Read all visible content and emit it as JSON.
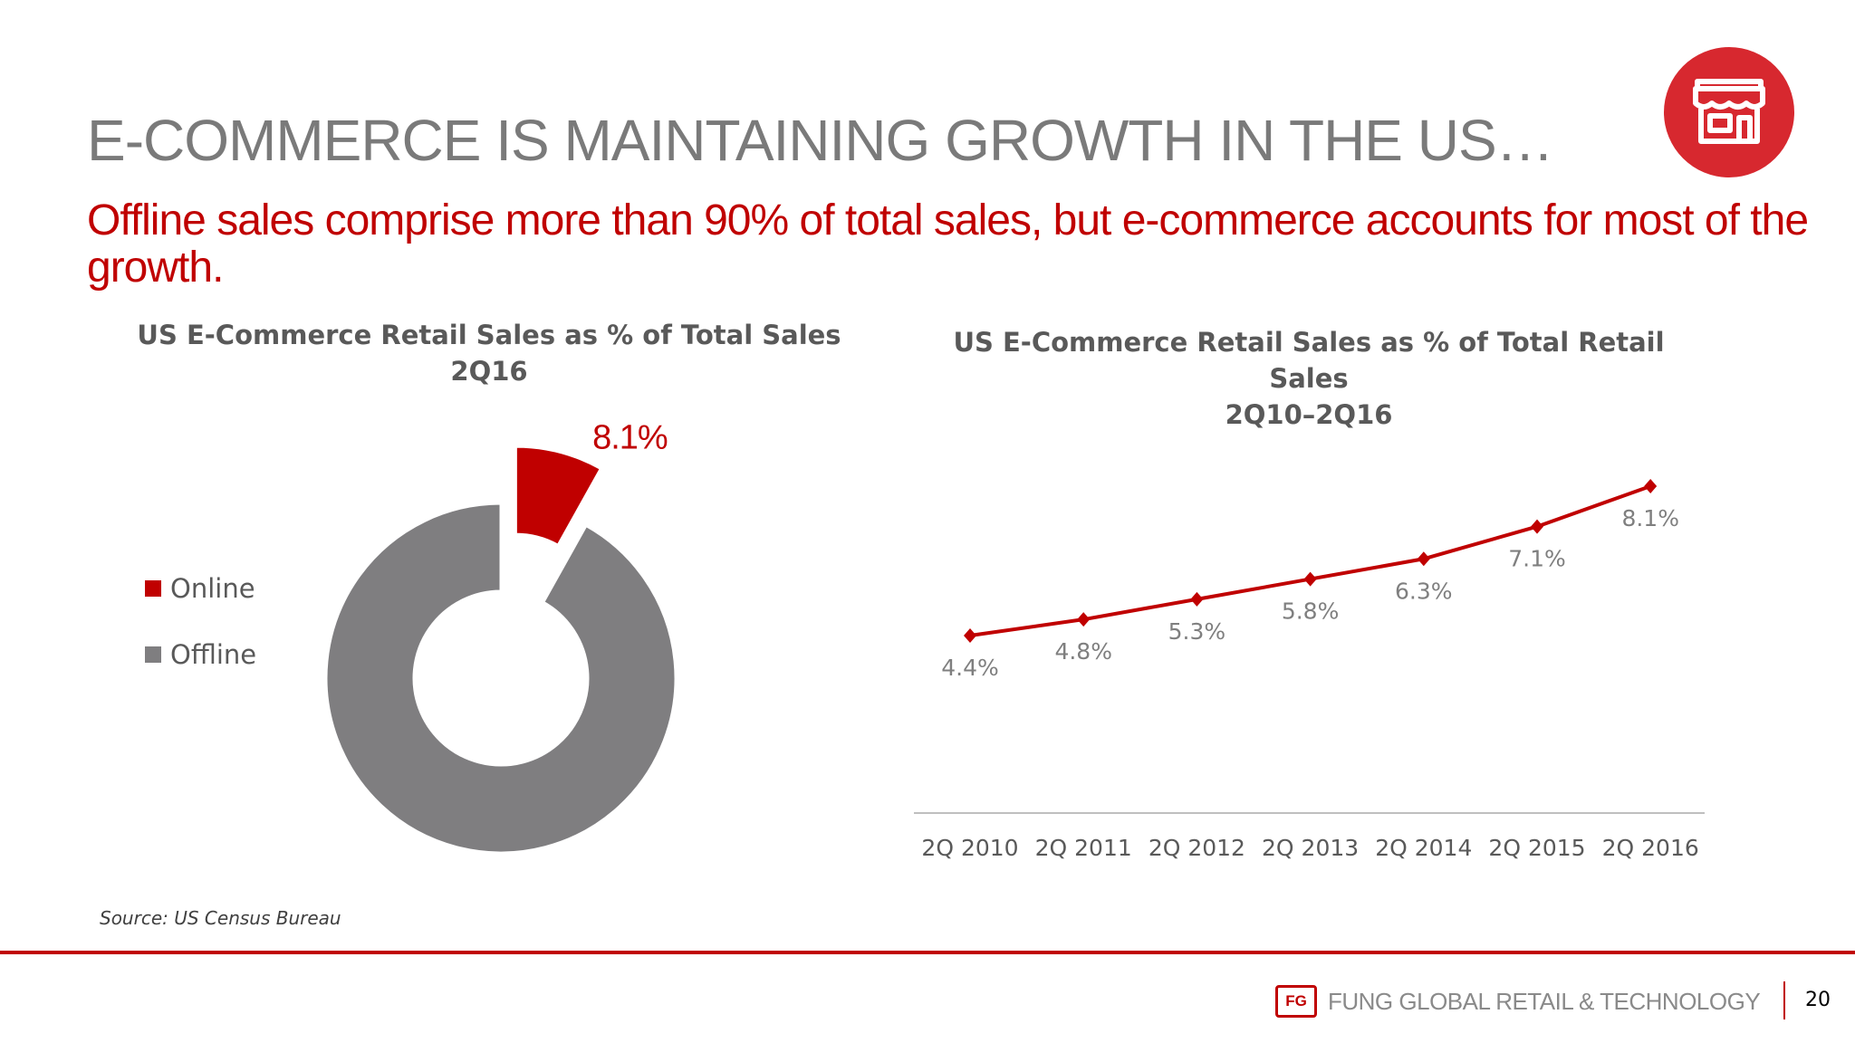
{
  "slide": {
    "title": "E-COMMERCE IS MAINTAINING GROWTH IN THE US…",
    "subtitle": "Offline sales comprise more than 90% of total sales, but e-commerce accounts for most of the growth.",
    "source": "Source: US Census Bureau",
    "page_number": "20",
    "footer_logo_mark": "FG",
    "footer_logo_text": "FUNG GLOBAL RETAIL & TECHNOLOGY",
    "badge_icon": "storefront-icon"
  },
  "colors": {
    "accent": "#c00000",
    "offline": "#7f7e80",
    "text_gray": "#595959",
    "badge": "#d7282f"
  },
  "chart_data": [
    {
      "type": "pie",
      "title": "US E-Commerce Retail Sales as % of Total Sales",
      "subtitle": "2Q16",
      "donut": true,
      "categories": [
        "Online",
        "Offline"
      ],
      "values": [
        8.1,
        91.9
      ],
      "data_labels": [
        "8.1%",
        ""
      ],
      "exploded": [
        "Online"
      ],
      "legend": "left",
      "colors": [
        "#c00000",
        "#7f7e80"
      ]
    },
    {
      "type": "line",
      "title": "US E-Commerce Retail Sales as % of Total Retail Sales",
      "subtitle": "2Q10–2Q16",
      "categories": [
        "2Q 2010",
        "2Q 2011",
        "2Q 2012",
        "2Q 2013",
        "2Q 2014",
        "2Q 2015",
        "2Q 2016"
      ],
      "series": [
        {
          "values": [
            4.4,
            4.8,
            5.3,
            5.8,
            6.3,
            7.1,
            8.1
          ],
          "labels": [
            "4.4%",
            "4.8%",
            "5.3%",
            "5.8%",
            "6.3%",
            "7.1%",
            "8.1%"
          ],
          "color": "#c00000"
        }
      ],
      "ylim": [
        0,
        9
      ],
      "grid": false,
      "legend": "none"
    }
  ]
}
